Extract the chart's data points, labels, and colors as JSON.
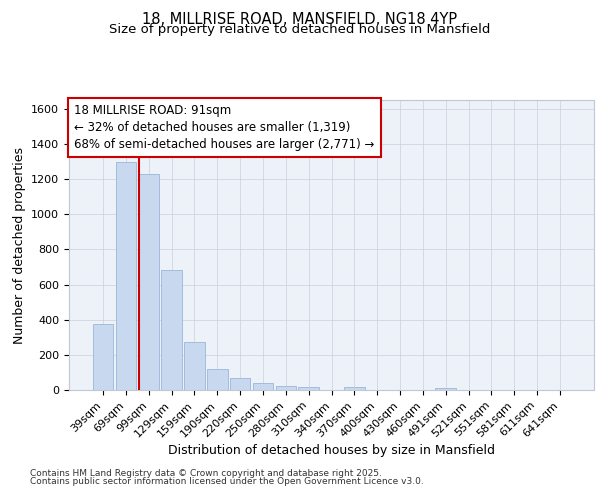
{
  "title_line1": "18, MILLRISE ROAD, MANSFIELD, NG18 4YP",
  "title_line2": "Size of property relative to detached houses in Mansfield",
  "xlabel": "Distribution of detached houses by size in Mansfield",
  "ylabel": "Number of detached properties",
  "categories": [
    "39sqm",
    "69sqm",
    "99sqm",
    "129sqm",
    "159sqm",
    "190sqm",
    "220sqm",
    "250sqm",
    "280sqm",
    "310sqm",
    "340sqm",
    "370sqm",
    "400sqm",
    "430sqm",
    "460sqm",
    "491sqm",
    "521sqm",
    "551sqm",
    "581sqm",
    "611sqm",
    "641sqm"
  ],
  "values": [
    375,
    1295,
    1230,
    680,
    275,
    120,
    70,
    40,
    25,
    15,
    0,
    15,
    0,
    0,
    0,
    10,
    0,
    0,
    0,
    0,
    0
  ],
  "bar_color": "#c8d8ef",
  "bar_edgecolor": "#9ab5d9",
  "vline_bar_index": 2,
  "annotation_title": "18 MILLRISE ROAD: 91sqm",
  "annotation_line2": "← 32% of detached houses are smaller (1,319)",
  "annotation_line3": "68% of semi-detached houses are larger (2,771) →",
  "annotation_box_color": "#ffffff",
  "annotation_border_color": "#cc0000",
  "vline_color": "#cc0000",
  "ylim": [
    0,
    1650
  ],
  "yticks": [
    0,
    200,
    400,
    600,
    800,
    1000,
    1200,
    1400,
    1600
  ],
  "grid_color": "#c8d0dc",
  "bg_color": "#edf1f8",
  "footnote1": "Contains HM Land Registry data © Crown copyright and database right 2025.",
  "footnote2": "Contains public sector information licensed under the Open Government Licence v3.0.",
  "title_fontsize": 10.5,
  "subtitle_fontsize": 9.5,
  "annotation_fontsize": 8.5,
  "footnote_fontsize": 6.5,
  "axis_label_fontsize": 9,
  "tick_fontsize": 8
}
